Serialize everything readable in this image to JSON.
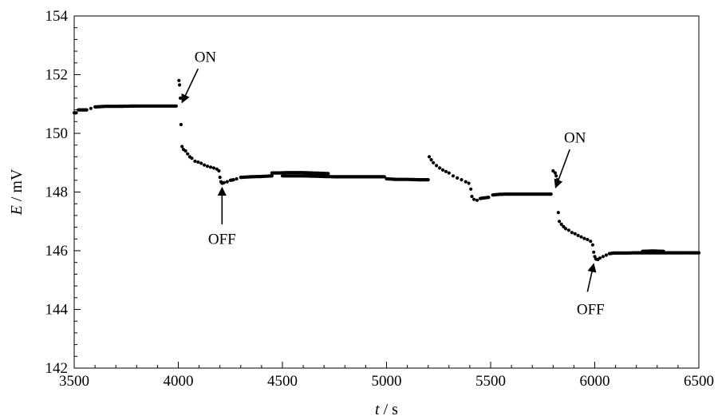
{
  "chart_data": {
    "type": "scatter",
    "xlabel": {
      "var": "t",
      "unit": " / s"
    },
    "ylabel": {
      "var": "E",
      "unit": " / mV"
    },
    "xlim": [
      3500,
      6500
    ],
    "ylim": [
      142,
      154
    ],
    "xticks": [
      3500,
      4000,
      4500,
      5000,
      5500,
      6000,
      6500
    ],
    "yticks": [
      142,
      144,
      146,
      148,
      150,
      152,
      154
    ],
    "grid": false,
    "legend": "none",
    "marker_color": "#000000",
    "segments": [
      {
        "points": [
          [
            3500,
            150.7
          ],
          [
            3510,
            150.7
          ],
          [
            3520,
            150.8
          ],
          [
            3540,
            150.8
          ],
          [
            3560,
            150.8
          ],
          [
            3580,
            150.85
          ],
          [
            3600,
            150.9
          ],
          [
            3650,
            150.92
          ],
          [
            3700,
            150.92
          ],
          [
            3800,
            150.93
          ],
          [
            3900,
            150.93
          ],
          [
            3990,
            150.93
          ]
        ]
      },
      {
        "points": [
          [
            4003,
            151.8
          ],
          [
            4006,
            151.65
          ],
          [
            4010,
            151.2
          ],
          [
            4013,
            150.3
          ],
          [
            4018,
            149.55
          ],
          [
            4025,
            149.45
          ],
          [
            4035,
            149.4
          ],
          [
            4045,
            149.3
          ],
          [
            4055,
            149.2
          ],
          [
            4065,
            149.15
          ],
          [
            4080,
            149.05
          ],
          [
            4095,
            149.02
          ],
          [
            4110,
            148.98
          ],
          [
            4125,
            148.92
          ],
          [
            4140,
            148.88
          ],
          [
            4155,
            148.85
          ],
          [
            4170,
            148.82
          ],
          [
            4185,
            148.78
          ],
          [
            4195,
            148.72
          ],
          [
            4200,
            148.5
          ],
          [
            4205,
            148.35
          ],
          [
            4210,
            148.3
          ],
          [
            4220,
            148.32
          ],
          [
            4235,
            148.35
          ],
          [
            4250,
            148.4
          ],
          [
            4265,
            148.42
          ],
          [
            4280,
            148.45
          ],
          [
            4300,
            148.5
          ],
          [
            4350,
            148.52
          ],
          [
            4400,
            148.53
          ],
          [
            4450,
            148.55
          ]
        ]
      },
      {
        "points": [
          [
            4450,
            148.65
          ],
          [
            4480,
            148.65
          ],
          [
            4520,
            148.66
          ],
          [
            4560,
            148.66
          ],
          [
            4600,
            148.66
          ],
          [
            4640,
            148.65
          ],
          [
            4680,
            148.64
          ],
          [
            4720,
            148.63
          ]
        ]
      },
      {
        "points": [
          [
            4500,
            148.55
          ],
          [
            4550,
            148.55
          ],
          [
            4600,
            148.55
          ],
          [
            4650,
            148.54
          ],
          [
            4700,
            148.53
          ],
          [
            4750,
            148.52
          ],
          [
            4800,
            148.52
          ],
          [
            4850,
            148.52
          ],
          [
            4900,
            148.52
          ],
          [
            4950,
            148.52
          ],
          [
            4990,
            148.52
          ]
        ]
      },
      {
        "points": [
          [
            5000,
            148.45
          ],
          [
            5050,
            148.43
          ],
          [
            5100,
            148.43
          ],
          [
            5150,
            148.42
          ],
          [
            5200,
            148.42
          ]
        ]
      },
      {
        "points": [
          [
            5205,
            149.2
          ],
          [
            5215,
            149.1
          ],
          [
            5225,
            149.0
          ],
          [
            5240,
            148.9
          ],
          [
            5255,
            148.82
          ],
          [
            5270,
            148.75
          ],
          [
            5285,
            148.7
          ],
          [
            5300,
            148.65
          ],
          [
            5320,
            148.55
          ],
          [
            5340,
            148.48
          ],
          [
            5360,
            148.42
          ],
          [
            5380,
            148.35
          ],
          [
            5395,
            148.3
          ],
          [
            5405,
            148.1
          ],
          [
            5410,
            147.85
          ],
          [
            5420,
            147.75
          ],
          [
            5435,
            147.72
          ],
          [
            5450,
            147.78
          ],
          [
            5470,
            147.8
          ],
          [
            5490,
            147.82
          ],
          [
            5510,
            147.9
          ],
          [
            5540,
            147.92
          ],
          [
            5580,
            147.93
          ],
          [
            5620,
            147.93
          ],
          [
            5660,
            147.93
          ],
          [
            5700,
            147.93
          ],
          [
            5740,
            147.93
          ],
          [
            5790,
            147.93
          ]
        ]
      },
      {
        "points": [
          [
            5800,
            148.72
          ],
          [
            5810,
            148.65
          ],
          [
            5815,
            148.55
          ],
          [
            5820,
            148.42
          ],
          [
            5825,
            147.3
          ],
          [
            5830,
            147.0
          ],
          [
            5840,
            146.9
          ],
          [
            5850,
            146.82
          ],
          [
            5860,
            146.75
          ],
          [
            5875,
            146.7
          ],
          [
            5890,
            146.62
          ],
          [
            5905,
            146.58
          ],
          [
            5920,
            146.52
          ],
          [
            5935,
            146.47
          ],
          [
            5950,
            146.42
          ],
          [
            5965,
            146.38
          ],
          [
            5980,
            146.32
          ],
          [
            5990,
            146.2
          ],
          [
            5995,
            145.95
          ],
          [
            6000,
            145.8
          ],
          [
            6005,
            145.72
          ],
          [
            6015,
            145.7
          ],
          [
            6025,
            145.75
          ],
          [
            6040,
            145.8
          ],
          [
            6055,
            145.85
          ],
          [
            6070,
            145.9
          ],
          [
            6090,
            145.92
          ],
          [
            6150,
            145.92
          ],
          [
            6200,
            145.93
          ],
          [
            6250,
            145.93
          ],
          [
            6300,
            145.93
          ],
          [
            6350,
            145.93
          ],
          [
            6400,
            145.93
          ],
          [
            6450,
            145.93
          ],
          [
            6500,
            145.93
          ]
        ]
      },
      {
        "points": [
          [
            6230,
            145.98
          ],
          [
            6280,
            145.99
          ],
          [
            6330,
            145.98
          ]
        ]
      }
    ],
    "annotations": [
      {
        "label": "ON",
        "text_at": [
          4130,
          152.6
        ],
        "arrow_from": [
          4095,
          152.2
        ],
        "arrow_to": [
          4018,
          151.05
        ]
      },
      {
        "label": "OFF",
        "text_at": [
          4210,
          146.4
        ],
        "arrow_from": [
          4210,
          146.9
        ],
        "arrow_to": [
          4210,
          148.15
        ]
      },
      {
        "label": "ON",
        "text_at": [
          5905,
          149.85
        ],
        "arrow_from": [
          5880,
          149.45
        ],
        "arrow_to": [
          5812,
          148.15
        ]
      },
      {
        "label": "OFF",
        "text_at": [
          5980,
          144.0
        ],
        "arrow_from": [
          5965,
          144.6
        ],
        "arrow_to": [
          5995,
          145.55
        ]
      }
    ]
  }
}
